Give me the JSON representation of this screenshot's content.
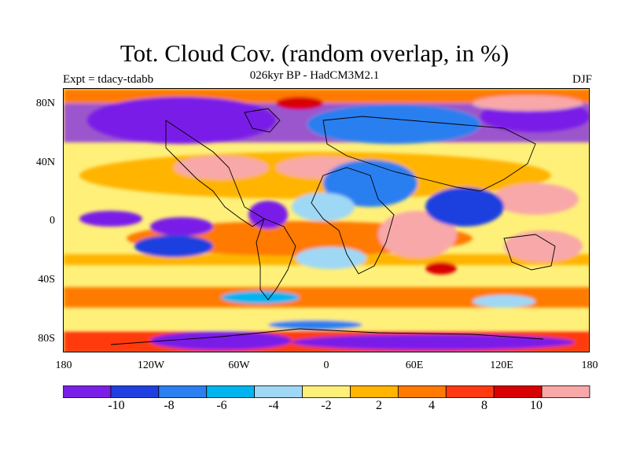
{
  "title": "Tot. Cloud Cov. (random overlap, in %)",
  "subtitle": "026kyr BP - HadCM3M2.1",
  "left_label": "Expt = tdacy-tdabb",
  "right_label": "DJF",
  "y_axis_labels": [
    "80N",
    "40N",
    "0",
    "40S",
    "80S"
  ],
  "x_axis_labels": [
    "180",
    "120W",
    "60W",
    "0",
    "60E",
    "120E",
    "180"
  ],
  "colorbar": {
    "colors": [
      "#7a1fe8",
      "#1f3fe0",
      "#2b7ff0",
      "#00b4f0",
      "#9fd8f5",
      "#fff07a",
      "#ffb400",
      "#ff7a00",
      "#ff3a10",
      "#d80000",
      "#f8a8a8"
    ],
    "labels": [
      "-10",
      "-8",
      "-6",
      "-4",
      "-2",
      "2",
      "4",
      "8",
      "10"
    ]
  }
}
